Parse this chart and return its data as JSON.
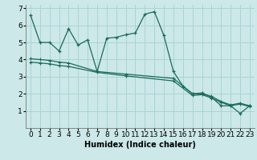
{
  "xlabel": "Humidex (Indice chaleur)",
  "background_color": "#cce8e8",
  "grid_color": "#aad4d4",
  "line_color": "#1a6b5a",
  "xlim": [
    -0.5,
    23.5
  ],
  "ylim": [
    0,
    7.2
  ],
  "xtick_labels": [
    "0",
    "1",
    "2",
    "3",
    "4",
    "5",
    "6",
    "7",
    "8",
    "9",
    "10",
    "11",
    "12",
    "13",
    "14",
    "15",
    "16",
    "17",
    "18",
    "19",
    "20",
    "21",
    "22",
    "23"
  ],
  "xtick_vals": [
    0,
    1,
    2,
    3,
    4,
    5,
    6,
    7,
    8,
    9,
    10,
    11,
    12,
    13,
    14,
    15,
    16,
    17,
    18,
    19,
    20,
    21,
    22,
    23
  ],
  "ytick_vals": [
    1,
    2,
    3,
    4,
    5,
    6
  ],
  "ytick_top": 7,
  "line1_x": [
    0,
    1,
    2,
    3,
    4,
    5,
    6,
    7,
    8,
    9,
    10,
    11,
    12,
    13,
    14,
    15,
    16,
    17,
    18,
    19,
    20,
    21,
    22,
    23
  ],
  "line1_y": [
    6.6,
    5.0,
    5.0,
    4.5,
    5.8,
    4.85,
    5.15,
    3.3,
    5.25,
    5.3,
    5.45,
    5.55,
    6.65,
    6.8,
    5.4,
    3.3,
    2.45,
    2.0,
    2.05,
    1.8,
    1.3,
    1.3,
    0.85,
    1.3
  ],
  "line2_x": [
    0,
    1,
    2,
    3,
    4,
    7,
    10,
    15,
    17,
    18,
    19,
    20,
    21,
    22,
    23
  ],
  "line2_y": [
    4.05,
    4.0,
    3.95,
    3.85,
    3.8,
    3.3,
    3.15,
    2.9,
    2.0,
    2.0,
    1.85,
    1.55,
    1.35,
    1.45,
    1.3
  ],
  "line3_x": [
    0,
    1,
    2,
    3,
    4,
    7,
    10,
    15,
    17,
    18,
    19,
    20,
    21,
    22,
    23
  ],
  "line3_y": [
    3.85,
    3.8,
    3.75,
    3.65,
    3.6,
    3.25,
    3.05,
    2.75,
    1.9,
    1.95,
    1.75,
    1.5,
    1.3,
    1.4,
    1.25
  ],
  "tick_fontsize": 6.5,
  "xlabel_fontsize": 7,
  "xlabel_fontweight": "bold"
}
